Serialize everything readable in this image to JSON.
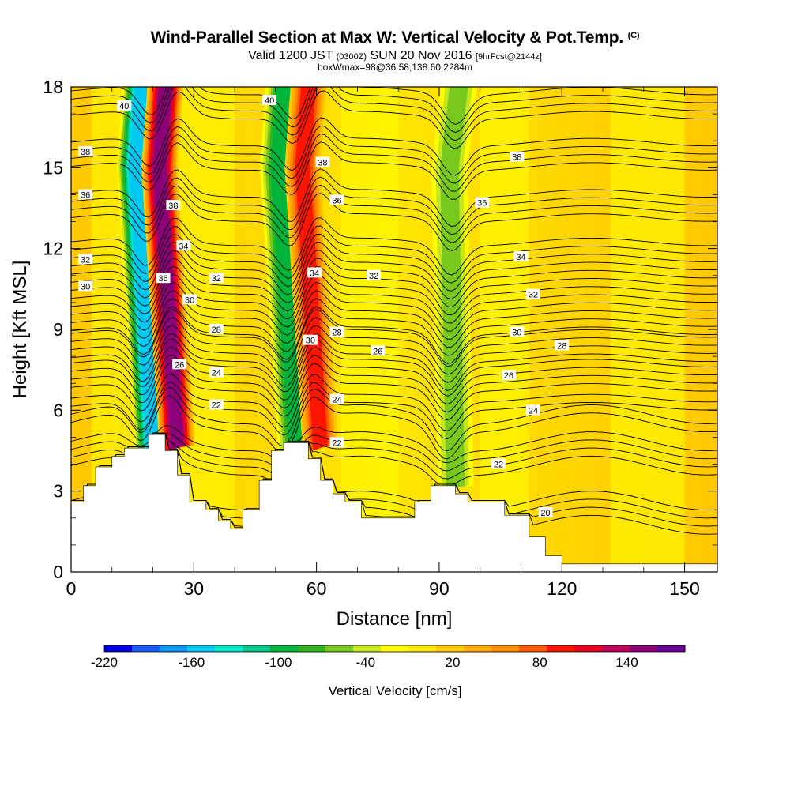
{
  "header": {
    "title": "Wind-Parallel Section at Max W: Vertical Velocity & Pot.Temp.",
    "copyright": "(C)",
    "valid_prefix": "Valid 1200 JST",
    "valid_utc": "(0300Z)",
    "valid_date": "SUN 20 Nov 2016",
    "forecast": "[9hrFcst@2144z]",
    "box_info": "boxWmax=98@36.58,138.60,2284m"
  },
  "chart_data": {
    "type": "heatmap",
    "xlabel": "Distance [nm]",
    "ylabel": "Height [Kft MSL]",
    "xlim": [
      0,
      158
    ],
    "ylim": [
      0,
      18
    ],
    "x_ticks": [
      "0",
      "30",
      "60",
      "90",
      "120",
      "150"
    ],
    "y_ticks": [
      "0",
      "3",
      "6",
      "9",
      "12",
      "15",
      "18"
    ],
    "colorbar": {
      "label": "Vertical Velocity [cm/s]",
      "tick_labels": [
        "-220",
        "-160",
        "-100",
        "-40",
        "20",
        "80",
        "140"
      ],
      "range": [
        -220,
        180
      ],
      "colors": [
        "#0000e6",
        "#1e5cff",
        "#0a96f0",
        "#00c8f0",
        "#00e6c8",
        "#00c88c",
        "#00b43c",
        "#32b41e",
        "#78c81e",
        "#c8e61e",
        "#ffff00",
        "#ffe600",
        "#ffc800",
        "#ffaa00",
        "#ff8c00",
        "#ff5a00",
        "#ff1400",
        "#e6001e",
        "#be005a",
        "#8c0078",
        "#640096"
      ]
    },
    "vertical_velocity_features": [
      {
        "x": 20,
        "type": "downdraft",
        "core_value": -160
      },
      {
        "x": 26,
        "type": "updraft",
        "core_value": 160
      },
      {
        "x": 55,
        "type": "downdraft",
        "core_value": -100
      },
      {
        "x": 61,
        "type": "updraft",
        "core_value": 110
      },
      {
        "x": 94,
        "type": "downdraft",
        "core_value": -60
      }
    ],
    "terrain_top_kft": [
      {
        "x": 0,
        "y": 2.6
      },
      {
        "x": 3,
        "y": 3.2
      },
      {
        "x": 6,
        "y": 3.9
      },
      {
        "x": 10,
        "y": 4.3
      },
      {
        "x": 13,
        "y": 4.6
      },
      {
        "x": 19,
        "y": 5.1
      },
      {
        "x": 23,
        "y": 4.5
      },
      {
        "x": 26,
        "y": 3.6
      },
      {
        "x": 29,
        "y": 2.6
      },
      {
        "x": 33,
        "y": 2.3
      },
      {
        "x": 36,
        "y": 1.9
      },
      {
        "x": 39,
        "y": 1.6
      },
      {
        "x": 42,
        "y": 2.3
      },
      {
        "x": 46,
        "y": 3.4
      },
      {
        "x": 49,
        "y": 4.5
      },
      {
        "x": 52,
        "y": 4.8
      },
      {
        "x": 58,
        "y": 4.2
      },
      {
        "x": 61,
        "y": 3.4
      },
      {
        "x": 64,
        "y": 2.9
      },
      {
        "x": 67,
        "y": 2.6
      },
      {
        "x": 71,
        "y": 2.0
      },
      {
        "x": 84,
        "y": 2.6
      },
      {
        "x": 88,
        "y": 3.2
      },
      {
        "x": 94,
        "y": 2.9
      },
      {
        "x": 97,
        "y": 2.6
      },
      {
        "x": 106,
        "y": 2.1
      },
      {
        "x": 112,
        "y": 1.3
      },
      {
        "x": 116,
        "y": 0.6
      },
      {
        "x": 120,
        "y": 0.3
      },
      {
        "x": 158,
        "y": 0.3
      }
    ],
    "theta_contours": [
      {
        "value": "20",
        "y": 2.2
      },
      {
        "value": "22",
        "y": 4.4
      },
      {
        "value": "24",
        "y": 6.0
      },
      {
        "value": "26",
        "y": 7.3
      },
      {
        "value": "28",
        "y": 8.4
      },
      {
        "value": "30",
        "y": 9.4
      },
      {
        "value": "32",
        "y": 10.6
      },
      {
        "value": "34",
        "y": 11.8
      },
      {
        "value": "36",
        "y": 13.6
      },
      {
        "value": "38",
        "y": 15.5
      },
      {
        "value": "40",
        "y": 17.4
      }
    ],
    "contour_labels": [
      {
        "text": "40",
        "x": 13,
        "y": 17.3
      },
      {
        "text": "40",
        "x": 48.5,
        "y": 17.5
      },
      {
        "text": "38",
        "x": 3.5,
        "y": 15.6
      },
      {
        "text": "38",
        "x": 61.5,
        "y": 15.2
      },
      {
        "text": "38",
        "x": 109,
        "y": 15.4
      },
      {
        "text": "38",
        "x": 25,
        "y": 13.6
      },
      {
        "text": "36",
        "x": 3.5,
        "y": 14.0
      },
      {
        "text": "36",
        "x": 65,
        "y": 13.8
      },
      {
        "text": "36",
        "x": 100.5,
        "y": 13.7
      },
      {
        "text": "34",
        "x": 27.5,
        "y": 12.1
      },
      {
        "text": "34",
        "x": 110,
        "y": 11.7
      },
      {
        "text": "34",
        "x": 59.5,
        "y": 11.1
      },
      {
        "text": "36",
        "x": 22.5,
        "y": 10.9
      },
      {
        "text": "32",
        "x": 3.5,
        "y": 11.6
      },
      {
        "text": "32",
        "x": 35.5,
        "y": 10.9
      },
      {
        "text": "32",
        "x": 74,
        "y": 11.0
      },
      {
        "text": "32",
        "x": 113,
        "y": 10.3
      },
      {
        "text": "30",
        "x": 3.5,
        "y": 10.6
      },
      {
        "text": "30",
        "x": 29,
        "y": 10.1
      },
      {
        "text": "30",
        "x": 58.5,
        "y": 8.6
      },
      {
        "text": "30",
        "x": 109,
        "y": 8.9
      },
      {
        "text": "28",
        "x": 35.5,
        "y": 9.0
      },
      {
        "text": "28",
        "x": 65,
        "y": 8.9
      },
      {
        "text": "28",
        "x": 120,
        "y": 8.4
      },
      {
        "text": "26",
        "x": 26.5,
        "y": 7.7
      },
      {
        "text": "26",
        "x": 75,
        "y": 8.2
      },
      {
        "text": "26",
        "x": 107,
        "y": 7.3
      },
      {
        "text": "24",
        "x": 35.5,
        "y": 7.4
      },
      {
        "text": "24",
        "x": 65,
        "y": 6.4
      },
      {
        "text": "24",
        "x": 113,
        "y": 6.0
      },
      {
        "text": "22",
        "x": 35.5,
        "y": 6.2
      },
      {
        "text": "22",
        "x": 65,
        "y": 4.8
      },
      {
        "text": "22",
        "x": 104.5,
        "y": 4.0
      },
      {
        "text": "20",
        "x": 116,
        "y": 2.2
      }
    ]
  }
}
